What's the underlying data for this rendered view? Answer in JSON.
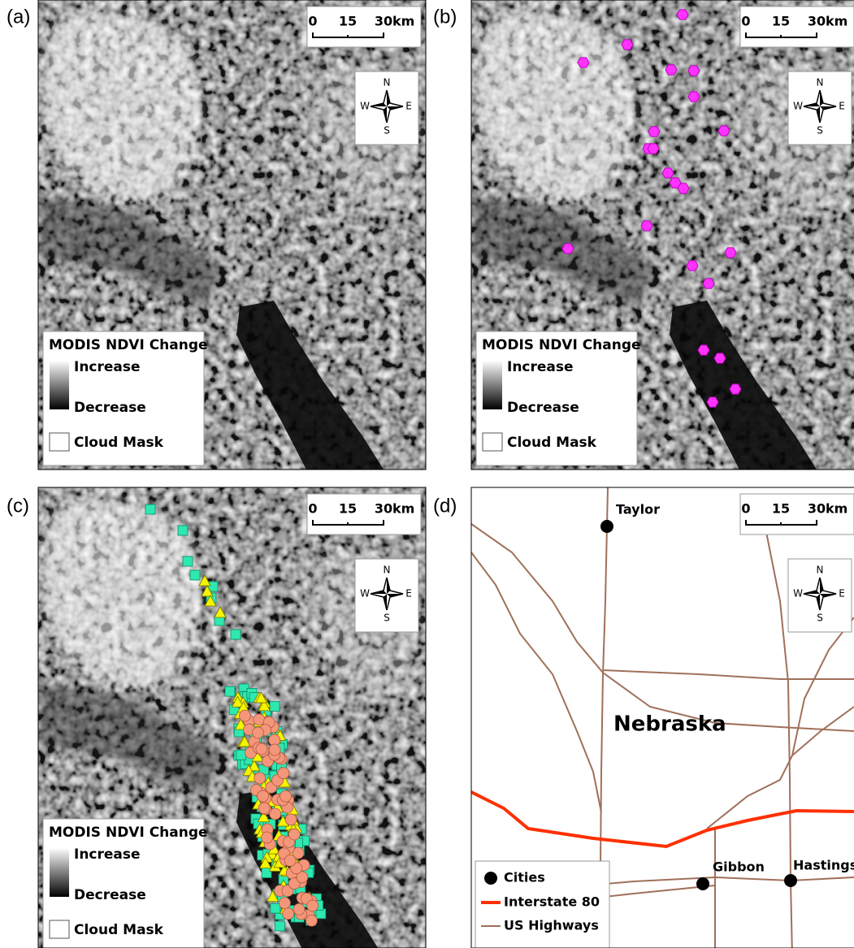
{
  "panels": [
    {
      "label": "(a)"
    },
    {
      "label": "(b)"
    },
    {
      "label": "(c)"
    },
    {
      "label": "(d)"
    }
  ],
  "scale_bar": {
    "ticks": [
      "0",
      "15",
      "30"
    ],
    "unit": "km"
  },
  "compass": {
    "north": "N",
    "south": "S",
    "west": "W",
    "east": "E"
  },
  "ndvi_legend": {
    "title": "MODIS NDVI Change",
    "increase": "Increase",
    "decrease": "Decrease",
    "cloud_mask": "Cloud Mask"
  },
  "map_d": {
    "state": "Nebraska",
    "cities": [
      "Taylor",
      "Gibbon",
      "Hastings"
    ],
    "legend": {
      "cities": "Cities",
      "interstate": "Interstate 80",
      "highways": "US Highways"
    }
  }
}
